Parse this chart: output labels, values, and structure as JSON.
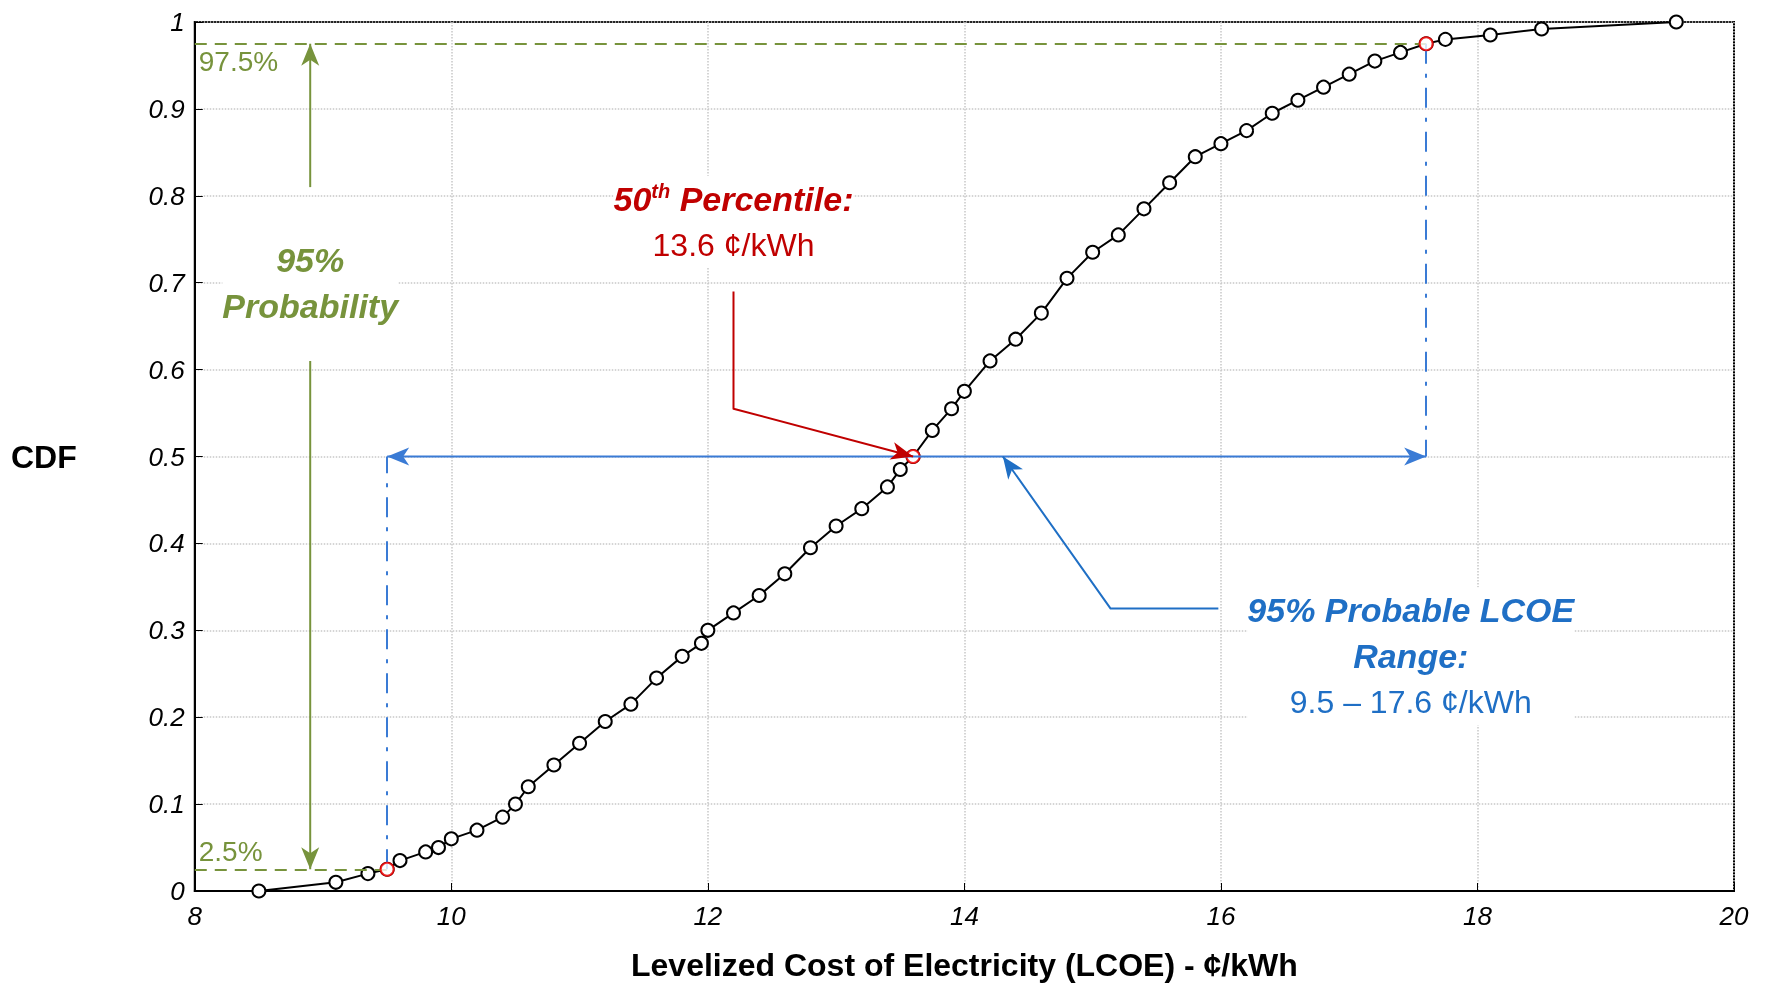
{
  "chart_data": {
    "type": "line",
    "xlabel": "Levelized Cost of Electricity (LCOE) - ¢/kWh",
    "ylabel": "CDF",
    "x": [
      8.5,
      9.1,
      9.35,
      9.5,
      9.6,
      9.8,
      9.9,
      10.0,
      10.2,
      10.4,
      10.5,
      10.6,
      10.8,
      11.0,
      11.2,
      11.4,
      11.6,
      11.8,
      11.95,
      12.0,
      12.2,
      12.4,
      12.6,
      12.8,
      13.0,
      13.2,
      13.4,
      13.5,
      13.6,
      13.75,
      13.9,
      14.0,
      14.2,
      14.4,
      14.6,
      14.8,
      15.0,
      15.2,
      15.4,
      15.6,
      15.8,
      16.0,
      16.2,
      16.4,
      16.6,
      16.8,
      17.0,
      17.2,
      17.4,
      17.6,
      17.75,
      18.1,
      18.5,
      19.55
    ],
    "series": [
      {
        "color": "#000000",
        "values": [
          0,
          0.01,
          0.02,
          0.025,
          0.035,
          0.045,
          0.05,
          0.06,
          0.07,
          0.085,
          0.1,
          0.12,
          0.145,
          0.17,
          0.195,
          0.215,
          0.245,
          0.27,
          0.285,
          0.3,
          0.32,
          0.34,
          0.365,
          0.395,
          0.42,
          0.44,
          0.465,
          0.485,
          0.5,
          0.53,
          0.555,
          0.575,
          0.61,
          0.635,
          0.665,
          0.705,
          0.735,
          0.755,
          0.785,
          0.815,
          0.845,
          0.86,
          0.875,
          0.895,
          0.91,
          0.925,
          0.94,
          0.955,
          0.965,
          0.975,
          0.98,
          0.985,
          0.992,
          1.0
        ]
      },
      {
        "type": "scatter",
        "color": "#ff0000",
        "x": [
          9.5,
          13.6,
          17.6
        ],
        "values": [
          0.025,
          0.5,
          0.975
        ]
      }
    ],
    "xlim": [
      8,
      20
    ],
    "xticks": [
      8,
      10,
      12,
      14,
      16,
      18,
      20
    ],
    "ylim": [
      0,
      1
    ],
    "yticks": [
      0,
      0.1,
      0.2,
      0.3,
      0.4,
      0.5,
      0.6,
      0.7,
      0.8,
      0.9,
      1
    ],
    "grid": true,
    "marker": "circle",
    "line_style": "solid",
    "ref_lines": [
      {
        "axis": "y",
        "value": 0.025,
        "label": "2.5%",
        "color": "#77933c",
        "line_style": "dashed"
      },
      {
        "axis": "y",
        "value": 0.975,
        "label": "97.5%",
        "color": "#77933c",
        "line_style": "dashed"
      },
      {
        "axis": "x",
        "value": 9.5,
        "label": null,
        "color": "#3a7bd5",
        "line_style": "dashed"
      },
      {
        "axis": "x",
        "value": 17.6,
        "label": null,
        "color": "#3a7bd5",
        "line_style": "dashed"
      }
    ],
    "annotations": [
      {
        "text": "95%\nProbability",
        "x": 8.9,
        "y": 0.025
      },
      {
        "text": "50$^{th}$ Percentile:\n13.6 ¢/kWh",
        "x": 13.6,
        "y": 0.5
      },
      "95% Probable LCOE\nRange:\n9.5 – 17.6 ¢/kWh"
    ]
  }
}
